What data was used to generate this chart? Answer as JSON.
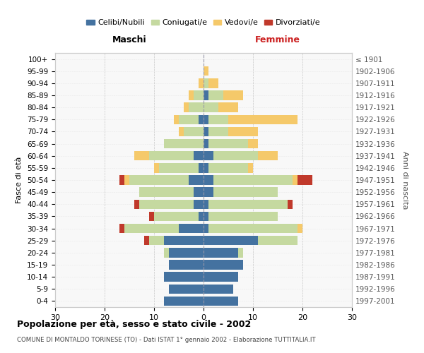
{
  "age_groups": [
    "0-4",
    "5-9",
    "10-14",
    "15-19",
    "20-24",
    "25-29",
    "30-34",
    "35-39",
    "40-44",
    "45-49",
    "50-54",
    "55-59",
    "60-64",
    "65-69",
    "70-74",
    "75-79",
    "80-84",
    "85-89",
    "90-94",
    "95-99",
    "100+"
  ],
  "birth_years": [
    "1997-2001",
    "1992-1996",
    "1987-1991",
    "1982-1986",
    "1977-1981",
    "1972-1976",
    "1967-1971",
    "1962-1966",
    "1957-1961",
    "1952-1956",
    "1947-1951",
    "1942-1946",
    "1937-1941",
    "1932-1936",
    "1927-1931",
    "1922-1926",
    "1917-1921",
    "1912-1916",
    "1907-1911",
    "1902-1906",
    "≤ 1901"
  ],
  "maschi": {
    "celibe": [
      8,
      7,
      8,
      7,
      7,
      8,
      5,
      1,
      2,
      2,
      3,
      1,
      2,
      0,
      0,
      1,
      0,
      0,
      0,
      0,
      0
    ],
    "coniugato": [
      0,
      0,
      0,
      0,
      1,
      3,
      11,
      9,
      11,
      11,
      12,
      8,
      9,
      8,
      4,
      4,
      3,
      2,
      0,
      0,
      0
    ],
    "vedovo": [
      0,
      0,
      0,
      0,
      0,
      0,
      0,
      0,
      0,
      0,
      1,
      1,
      3,
      0,
      1,
      1,
      1,
      1,
      1,
      0,
      0
    ],
    "divorziato": [
      0,
      0,
      0,
      0,
      0,
      1,
      1,
      1,
      1,
      0,
      1,
      0,
      0,
      0,
      0,
      0,
      0,
      0,
      0,
      0,
      0
    ]
  },
  "femmine": {
    "nubile": [
      7,
      6,
      7,
      8,
      7,
      11,
      1,
      1,
      1,
      2,
      2,
      1,
      2,
      1,
      1,
      1,
      0,
      1,
      0,
      0,
      0
    ],
    "coniugata": [
      0,
      0,
      0,
      0,
      1,
      8,
      18,
      14,
      16,
      13,
      16,
      8,
      9,
      8,
      4,
      4,
      3,
      3,
      1,
      0,
      0
    ],
    "vedova": [
      0,
      0,
      0,
      0,
      0,
      0,
      1,
      0,
      0,
      0,
      1,
      1,
      4,
      2,
      6,
      14,
      4,
      4,
      2,
      1,
      0
    ],
    "divorziata": [
      0,
      0,
      0,
      0,
      0,
      0,
      0,
      0,
      1,
      0,
      3,
      0,
      0,
      0,
      0,
      0,
      0,
      0,
      0,
      0,
      0
    ]
  },
  "colors": {
    "celibe": "#4472a0",
    "coniugato": "#c5d9a0",
    "vedovo": "#f5c96a",
    "divorziato": "#c0392b"
  },
  "xlim": 30,
  "title": "Popolazione per età, sesso e stato civile - 2002",
  "subtitle": "COMUNE DI MONTALDO TORINESE (TO) - Dati ISTAT 1° gennaio 2002 - Elaborazione TUTTITALIA.IT",
  "ylabel_left": "Fasce di età",
  "ylabel_right": "Anni di nascita"
}
